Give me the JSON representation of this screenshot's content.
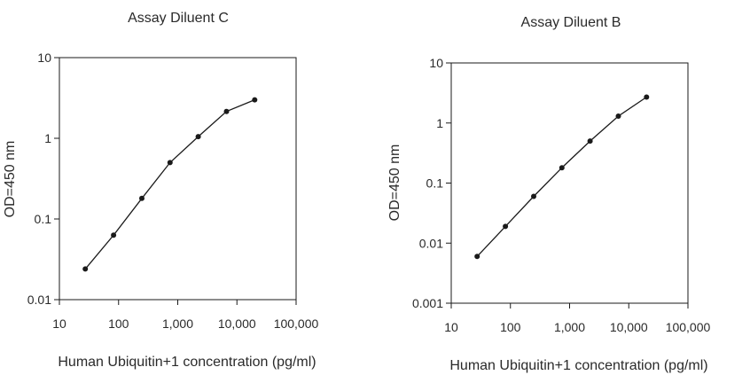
{
  "chart_data": [
    {
      "type": "line",
      "title": "Assay Diluent C",
      "xlabel": "Human Ubiquitin+1 concentration (pg/ml)",
      "ylabel": "OD=450 nm",
      "xscale": "log",
      "yscale": "log",
      "xlim": [
        10,
        100000
      ],
      "ylim": [
        0.01,
        10
      ],
      "xticks": [
        10,
        100,
        1000,
        10000,
        100000
      ],
      "xtick_labels": [
        "10",
        "100",
        "1,000",
        "10,000",
        "100,000"
      ],
      "yticks": [
        0.01,
        0.1,
        1,
        10
      ],
      "ytick_labels": [
        "0.01",
        "0.1",
        "1",
        "10"
      ],
      "grid": false,
      "series": [
        {
          "x": [
            27.4,
            82.3,
            247,
            741,
            2222,
            6667,
            20000
          ],
          "y": [
            0.024,
            0.063,
            0.18,
            0.5,
            1.05,
            2.15,
            3.0
          ]
        }
      ]
    },
    {
      "type": "line",
      "title": "Assay Diluent B",
      "xlabel": "Human Ubiquitin+1 concentration (pg/ml)",
      "ylabel": "OD=450 nm",
      "xscale": "log",
      "yscale": "log",
      "xlim": [
        10,
        100000
      ],
      "ylim": [
        0.001,
        10
      ],
      "xticks": [
        10,
        100,
        1000,
        10000,
        100000
      ],
      "xtick_labels": [
        "10",
        "100",
        "1,000",
        "10,000",
        "100,000"
      ],
      "yticks": [
        0.001,
        0.01,
        0.1,
        1,
        10
      ],
      "ytick_labels": [
        "0.001",
        "0.01",
        "0.1",
        "1",
        "10"
      ],
      "grid": false,
      "series": [
        {
          "x": [
            27.4,
            82.3,
            247,
            741,
            2222,
            6667,
            20000
          ],
          "y": [
            0.006,
            0.019,
            0.06,
            0.18,
            0.5,
            1.3,
            2.7
          ]
        }
      ]
    }
  ]
}
